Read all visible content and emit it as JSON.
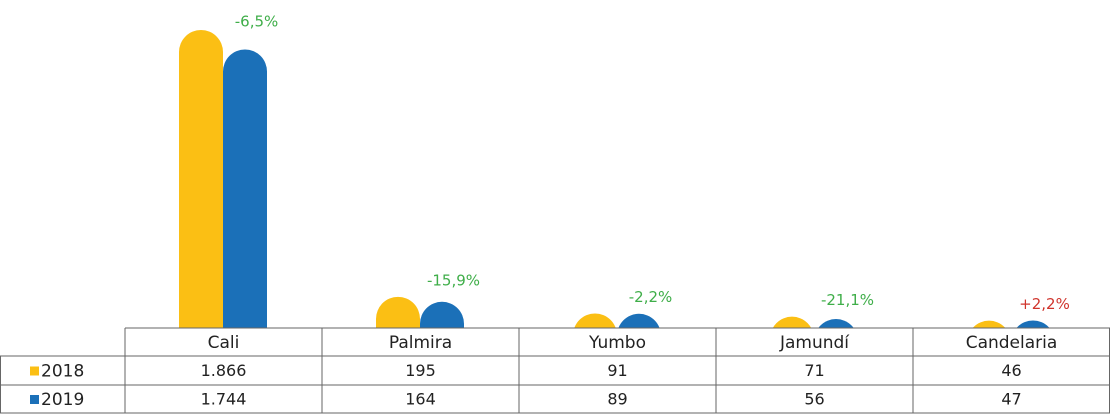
{
  "chart_data": {
    "type": "bar",
    "categories": [
      "Cali",
      "Palmira",
      "Yumbo",
      "Jamundí",
      "Candelaria"
    ],
    "series": [
      {
        "name": "2018",
        "color": "#fbbf14",
        "values": [
          1866,
          195,
          91,
          71,
          46
        ],
        "value_labels": [
          "1.866",
          "195",
          "91",
          "71",
          "46"
        ]
      },
      {
        "name": "2019",
        "color": "#1b70b8",
        "values": [
          1744,
          164,
          89,
          56,
          47
        ],
        "value_labels": [
          "1.744",
          "164",
          "89",
          "56",
          "47"
        ]
      }
    ],
    "annotations": [
      {
        "text": "-6,5%",
        "color": "#3fae49"
      },
      {
        "text": "-15,9%",
        "color": "#3fae49"
      },
      {
        "text": "-2,2%",
        "color": "#3fae49"
      },
      {
        "text": "-21,1%",
        "color": "#3fae49"
      },
      {
        "text": "+2,2%",
        "color": "#d0342c"
      }
    ]
  }
}
